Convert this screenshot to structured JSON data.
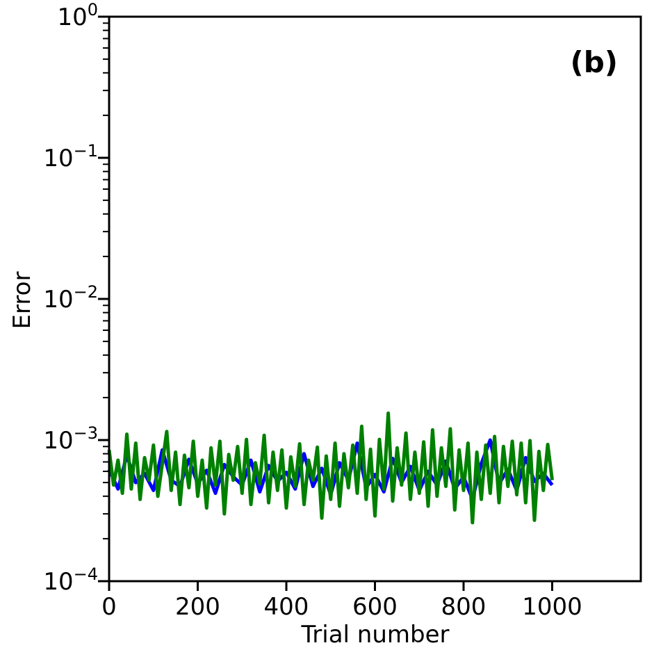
{
  "chart_data": {
    "type": "line",
    "panel_label": "(b)",
    "xlabel": "Trial number",
    "ylabel": "Error",
    "xlim": [
      0,
      1200
    ],
    "ylim": [
      0.0001,
      1
    ],
    "yscale": "log",
    "grid": false,
    "x_ticks": [
      {
        "value": 0,
        "label": "0"
      },
      {
        "value": 200,
        "label": "200"
      },
      {
        "value": 400,
        "label": "400"
      },
      {
        "value": 600,
        "label": "600"
      },
      {
        "value": 800,
        "label": "800"
      },
      {
        "value": 1000,
        "label": "1000"
      }
    ],
    "y_ticks": [
      {
        "value": 1,
        "base": "10",
        "exp": "0"
      },
      {
        "value": 0.1,
        "base": "10",
        "exp": "−1"
      },
      {
        "value": 0.01,
        "base": "10",
        "exp": "−2"
      },
      {
        "value": 0.001,
        "base": "10",
        "exp": "−3"
      },
      {
        "value": 0.0001,
        "base": "10",
        "exp": "−4"
      }
    ],
    "series": [
      {
        "color": "#0000ff",
        "x": [
          0,
          20,
          40,
          60,
          80,
          100,
          120,
          140,
          160,
          180,
          200,
          220,
          240,
          260,
          280,
          300,
          320,
          340,
          360,
          380,
          400,
          420,
          440,
          460,
          480,
          500,
          520,
          540,
          560,
          580,
          600,
          620,
          640,
          660,
          680,
          700,
          720,
          740,
          760,
          780,
          800,
          820,
          840,
          860,
          880,
          900,
          920,
          940,
          960,
          980,
          1000
        ],
        "values": [
          0.00062,
          0.00045,
          0.00078,
          0.0005,
          0.00058,
          0.00044,
          0.00085,
          0.00052,
          0.00047,
          0.00073,
          0.00049,
          0.00061,
          0.00042,
          0.00067,
          0.00055,
          0.00048,
          0.00072,
          0.00043,
          0.00066,
          0.00051,
          0.00059,
          0.00045,
          0.0008,
          0.00047,
          0.00063,
          0.00041,
          0.00069,
          0.00052,
          0.00095,
          0.00046,
          0.00057,
          0.00043,
          0.00074,
          0.0005,
          0.00065,
          0.00044,
          0.0006,
          0.00048,
          0.00071,
          0.00045,
          0.00055,
          0.00038,
          0.00068,
          0.001,
          0.00049,
          0.00062,
          0.00044,
          0.00075,
          0.00051,
          0.00058,
          0.00048
        ]
      },
      {
        "color": "#008000",
        "x": [
          0,
          10,
          20,
          30,
          40,
          50,
          60,
          70,
          80,
          90,
          100,
          110,
          120,
          130,
          140,
          150,
          160,
          170,
          180,
          190,
          200,
          210,
          220,
          230,
          240,
          250,
          260,
          270,
          280,
          290,
          300,
          310,
          320,
          330,
          340,
          350,
          360,
          370,
          380,
          390,
          400,
          410,
          420,
          430,
          440,
          450,
          460,
          470,
          480,
          490,
          500,
          510,
          520,
          530,
          540,
          550,
          560,
          570,
          580,
          590,
          600,
          610,
          620,
          630,
          640,
          650,
          660,
          670,
          680,
          690,
          700,
          710,
          720,
          730,
          740,
          750,
          760,
          770,
          780,
          790,
          800,
          810,
          820,
          830,
          840,
          850,
          860,
          870,
          880,
          890,
          900,
          910,
          920,
          930,
          940,
          950,
          960,
          970,
          980,
          990,
          1000
        ],
        "values": [
          0.00085,
          0.00048,
          0.00072,
          0.00042,
          0.0011,
          0.00045,
          0.00095,
          0.00038,
          0.00075,
          0.00052,
          0.00092,
          0.0004,
          0.00068,
          0.00115,
          0.00044,
          0.00082,
          0.00035,
          0.00078,
          0.00046,
          0.00098,
          0.0004,
          0.00072,
          0.00033,
          0.00088,
          0.00048,
          0.00098,
          0.0003,
          0.00079,
          0.00052,
          0.0009,
          0.00042,
          0.00101,
          0.00035,
          0.00069,
          0.00049,
          0.00108,
          0.00036,
          0.00082,
          0.00044,
          0.00085,
          0.00033,
          0.00076,
          0.00047,
          0.00094,
          0.00035,
          0.00072,
          0.00052,
          0.00089,
          0.00028,
          0.00077,
          0.00038,
          0.00095,
          0.00034,
          0.0008,
          0.00046,
          0.00092,
          0.00042,
          0.00125,
          0.00038,
          0.00086,
          0.00029,
          0.00101,
          0.00045,
          0.00155,
          0.00037,
          0.00088,
          0.00048,
          0.00112,
          0.00038,
          0.00082,
          0.00042,
          0.00097,
          0.00034,
          0.00118,
          0.0004,
          0.00088,
          0.00047,
          0.0012,
          0.00032,
          0.00085,
          0.00044,
          0.00095,
          0.00026,
          0.00082,
          0.00038,
          0.00092,
          0.00042,
          0.00106,
          0.00036,
          0.0009,
          0.00047,
          0.00098,
          0.00041,
          0.00095,
          0.00036,
          0.00099,
          0.00027,
          0.00083,
          0.00044,
          0.00093,
          0.00052
        ]
      }
    ]
  }
}
